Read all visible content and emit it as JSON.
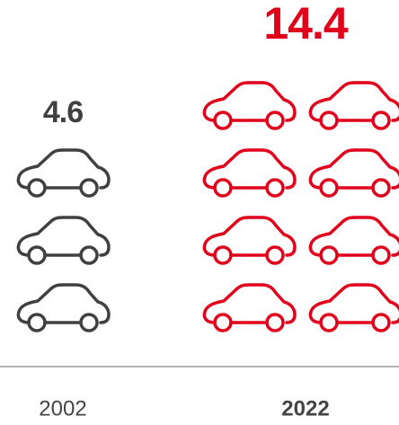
{
  "chart_data": {
    "type": "pictogram",
    "categories": [
      "2002",
      "2022"
    ],
    "values": [
      4.6,
      14.4
    ],
    "colors": [
      "#404040",
      "#e0001b"
    ]
  }
}
